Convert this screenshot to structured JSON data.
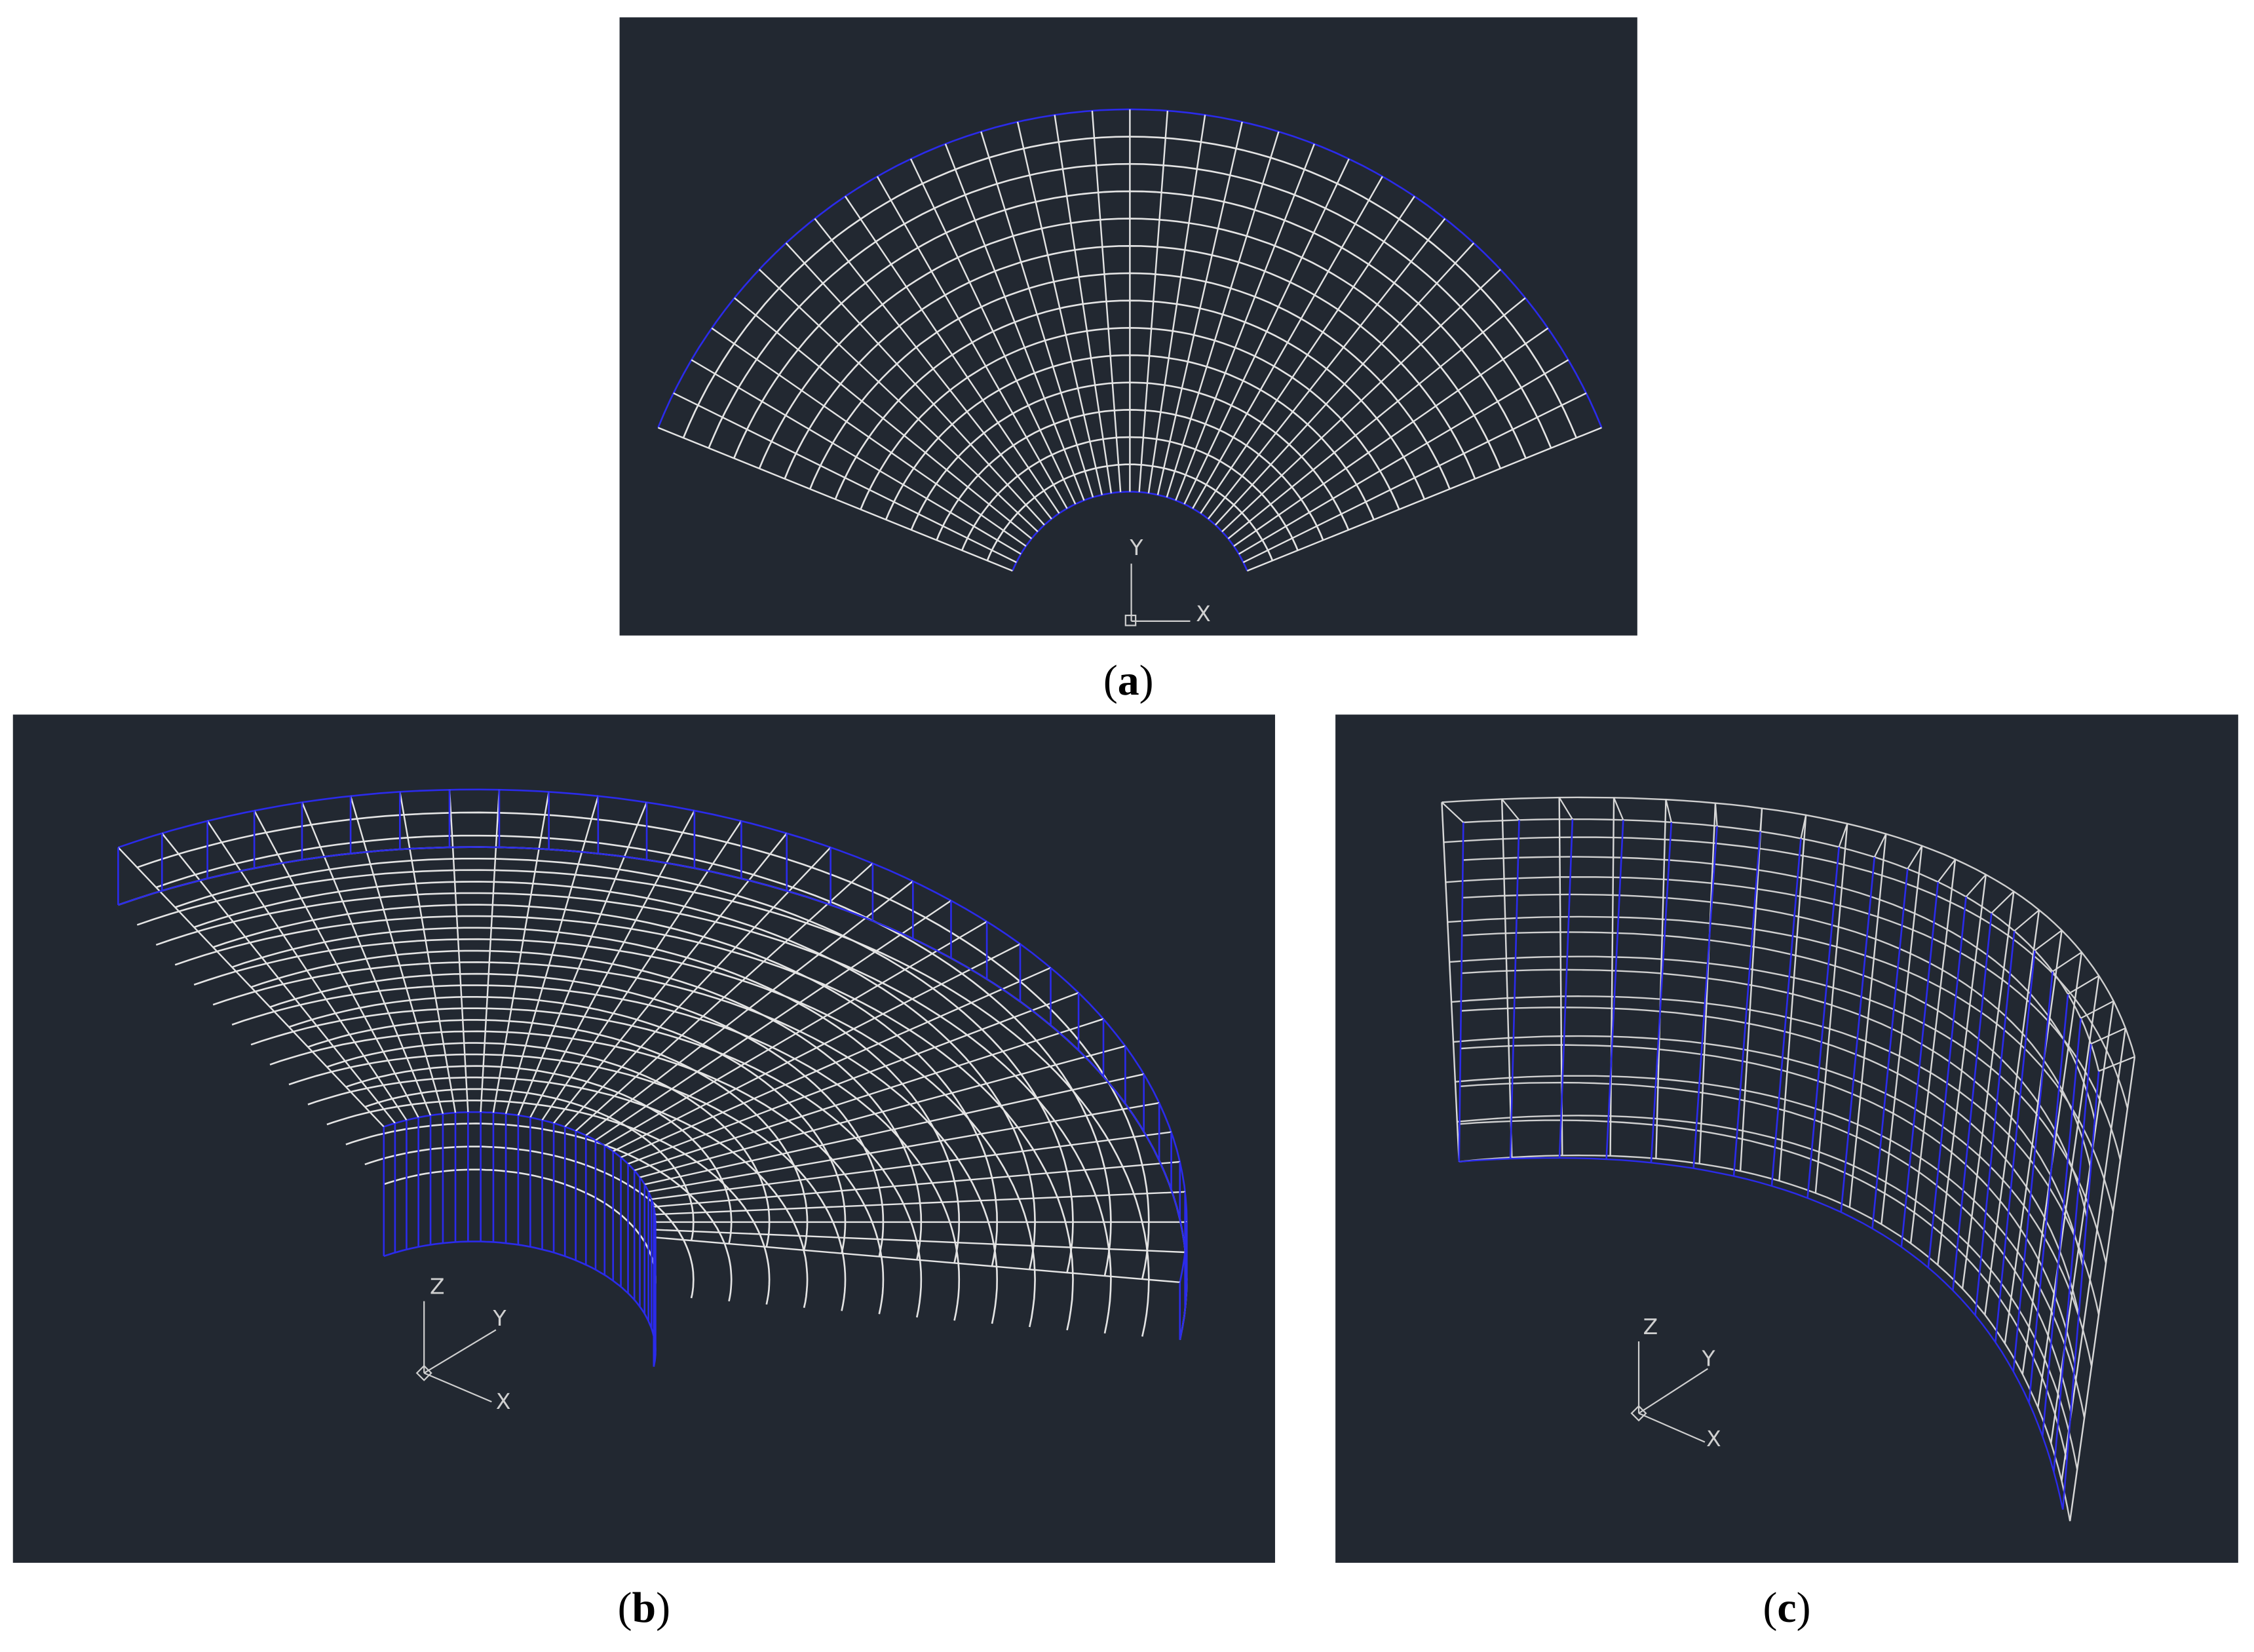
{
  "panels": [
    {
      "caption": {
        "open": "(",
        "letter": "a",
        "close": ")"
      },
      "axes": {
        "y": "Y",
        "x": "X"
      }
    },
    {
      "caption": {
        "open": "(",
        "letter": "b",
        "close": ")"
      },
      "axes": {
        "z": "Z",
        "y": "Y",
        "x": "X"
      }
    },
    {
      "caption": {
        "open": "(",
        "letter": "c",
        "close": ")"
      },
      "axes": {
        "z": "Z",
        "y": "Y",
        "x": "X"
      }
    }
  ]
}
